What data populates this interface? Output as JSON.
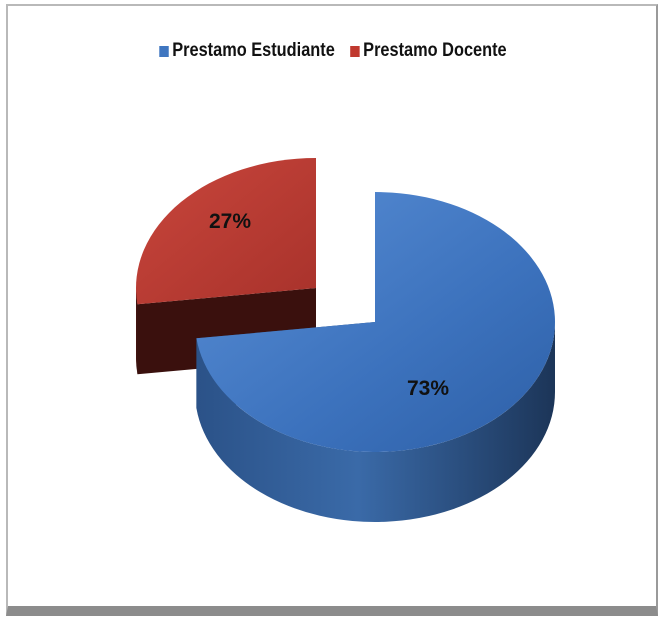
{
  "chart_data": {
    "type": "pie",
    "style": "3d-exploded",
    "legend_position": "top",
    "slices": [
      {
        "label": "Prestamo Estudiante",
        "value": 73,
        "value_label": "73%",
        "color": "#3f76c0"
      },
      {
        "label": "Prestamo Docente",
        "value": 27,
        "value_label": "27%",
        "color": "#c0392f"
      }
    ]
  }
}
